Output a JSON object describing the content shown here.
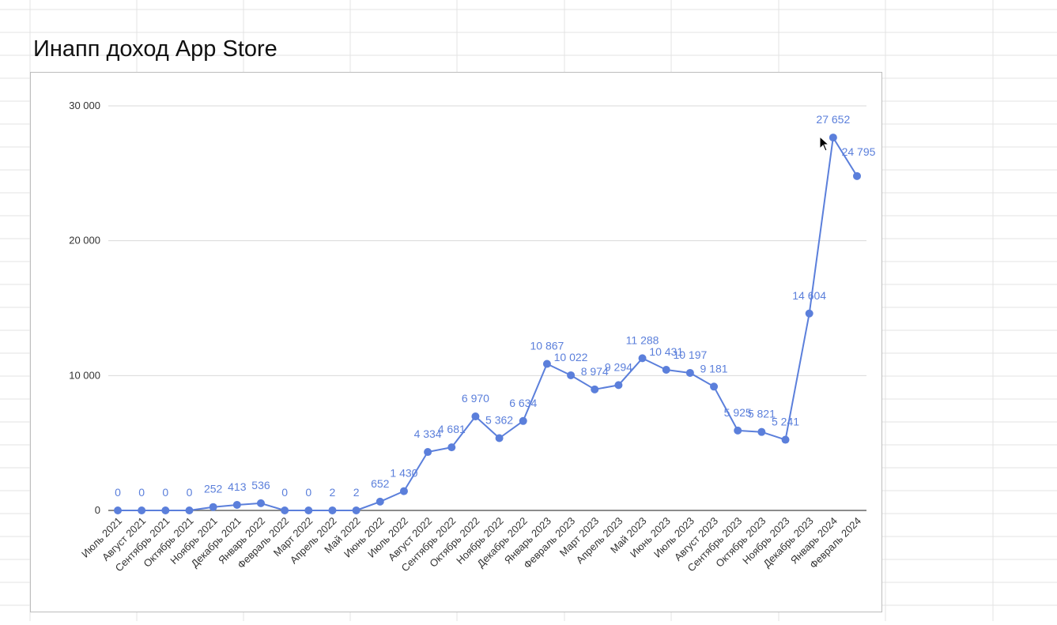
{
  "sheet": {
    "title": "Инапп доход App Store"
  },
  "colors": {
    "series": "#5b7fdb",
    "gridline": "#d9d9d9",
    "baseline": "#666666",
    "axis_text": "#333333",
    "cell_grid": "#e3e3e3"
  },
  "chart_data": {
    "type": "line",
    "title": "",
    "xlabel": "",
    "ylabel": "",
    "ylim": [
      0,
      30000
    ],
    "yticks": [
      0,
      10000,
      20000,
      30000
    ],
    "ytick_labels": [
      "0",
      "10 000",
      "20 000",
      "30 000"
    ],
    "grid": true,
    "legend": "none",
    "categories": [
      "Июль 2021",
      "Август 2021",
      "Сентябрь 2021",
      "Октябрь 2021",
      "Ноябрь 2021",
      "Декабрь 2021",
      "Январь 2022",
      "Февраль 2022",
      "Март 2022",
      "Апрель 2022",
      "Май 2022",
      "Июнь 2022",
      "Июль 2022",
      "Август 2022",
      "Сентябрь 2022",
      "Октябрь 2022",
      "Ноябрь 2022",
      "Декабрь 2022",
      "Январь 2023",
      "Февраль 2023",
      "Март 2023",
      "Апрель 2023",
      "Май 2023",
      "Июнь 2023",
      "Июль 2023",
      "Август 2023",
      "Сентябрь 2023",
      "Октябрь 2023",
      "Ноябрь 2023",
      "Декабрь 2023",
      "Январь 2024",
      "Февраль 2024"
    ],
    "series": [
      {
        "values": [
          0,
          0,
          0,
          0,
          252,
          413,
          536,
          0,
          0,
          2,
          2,
          652,
          1430,
          4334,
          4681,
          6970,
          5362,
          6634,
          10867,
          10022,
          8974,
          9294,
          11288,
          10431,
          10197,
          9181,
          5925,
          5821,
          5241,
          14604,
          27652,
          24795
        ],
        "data_labels": [
          "0",
          "0",
          "0",
          "0",
          "252",
          "413",
          "536",
          "0",
          "0",
          "2",
          "2",
          "652",
          "1 430",
          "4 334",
          "4 681",
          "6 970",
          "5 362",
          "6 634",
          "10 867",
          "10 022",
          "8 974",
          "9 294",
          "11 288",
          "10 431",
          "10 197",
          "9 181",
          "5 925",
          "5 821",
          "5 241",
          "14 604",
          "27 652",
          "24 795"
        ]
      }
    ]
  }
}
